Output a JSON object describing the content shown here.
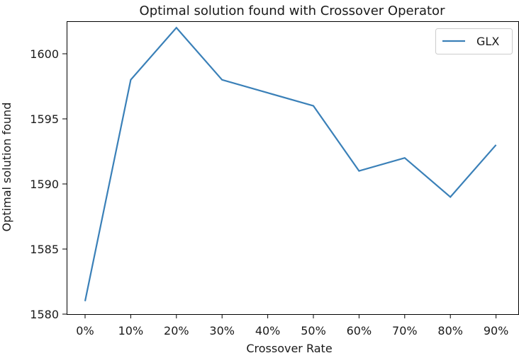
{
  "chart_data": {
    "type": "line",
    "title": "Optimal solution found with Crossover Operator",
    "xlabel": "Crossover Rate",
    "ylabel": "Optimal solution found",
    "categories": [
      "0%",
      "10%",
      "20%",
      "30%",
      "40%",
      "50%",
      "60%",
      "70%",
      "80%",
      "90%"
    ],
    "series": [
      {
        "name": "GLX",
        "color": "#3a80b8",
        "values": [
          1581,
          1598,
          1602,
          1598,
          1597,
          1596,
          1591,
          1592,
          1589,
          1593
        ]
      }
    ],
    "ylim": [
      1580,
      1602.5
    ],
    "yticks": [
      1580,
      1585,
      1590,
      1595,
      1600
    ],
    "grid": false,
    "legend_position": "top-right"
  }
}
